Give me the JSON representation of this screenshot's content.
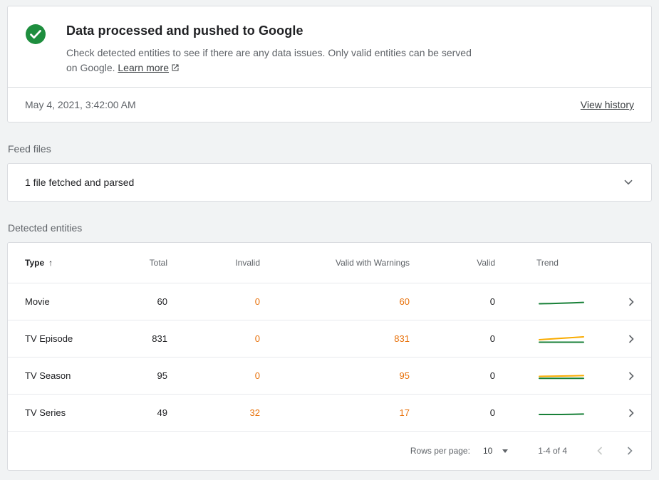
{
  "status_card": {
    "title": "Data processed and pushed to Google",
    "description": "Check detected entities to see if there are any data issues. Only valid entities can be served on Google.",
    "learn_more_label": "Learn more",
    "timestamp": "May 4, 2021, 3:42:00 AM",
    "view_history_label": "View history"
  },
  "feed_files": {
    "section_label": "Feed files",
    "summary": "1 file fetched and parsed"
  },
  "detected_entities": {
    "section_label": "Detected entities",
    "columns": {
      "type": "Type",
      "total": "Total",
      "invalid": "Invalid",
      "valid_with_warnings": "Valid with Warnings",
      "valid": "Valid",
      "trend": "Trend"
    },
    "rows": [
      {
        "type": "Movie",
        "total": "60",
        "invalid": "0",
        "valid_with_warnings": "60",
        "valid": "0",
        "trend": [
          {
            "color": "#188038",
            "points": [
              13.5,
              13.2,
              12.8,
              12.2,
              11.6
            ]
          }
        ]
      },
      {
        "type": "TV Episode",
        "total": "831",
        "invalid": "0",
        "valid_with_warnings": "831",
        "valid": "0",
        "trend": [
          {
            "color": "#f9ab00",
            "points": [
              12,
              11,
              10,
              9,
              8
            ]
          },
          {
            "color": "#188038",
            "points": [
              15.5,
              15.5,
              15.5,
              15.5,
              15.5
            ]
          }
        ]
      },
      {
        "type": "TV Season",
        "total": "95",
        "invalid": "0",
        "valid_with_warnings": "95",
        "valid": "0",
        "trend": [
          {
            "color": "#f9ab00",
            "points": [
              11.5,
              11.2,
              11,
              10.7,
              10.4
            ]
          },
          {
            "color": "#188038",
            "points": [
              14.2,
              14.2,
              14.2,
              14.2,
              14.2
            ]
          }
        ]
      },
      {
        "type": "TV Series",
        "total": "49",
        "invalid": "32",
        "valid_with_warnings": "17",
        "valid": "0",
        "trend": [
          {
            "color": "#188038",
            "points": [
              13,
              13,
              13,
              12.8,
              12.4
            ]
          }
        ]
      }
    ],
    "pagination": {
      "rows_per_page_label": "Rows per page:",
      "rows_per_page_value": "10",
      "range_label": "1-4 of 4"
    }
  },
  "colors": {
    "success_green": "#1e8e3e",
    "warning_orange": "#e8710a",
    "trend_green": "#188038",
    "trend_orange": "#f9ab00",
    "border": "#dadce0",
    "page_background": "#f1f3f4"
  }
}
